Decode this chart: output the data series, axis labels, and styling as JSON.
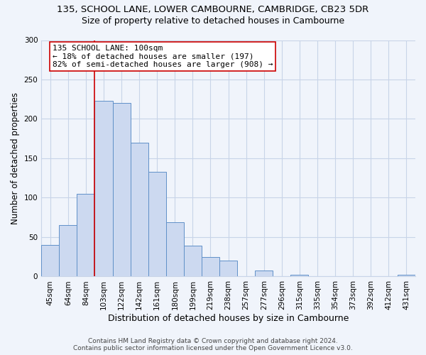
{
  "title": "135, SCHOOL LANE, LOWER CAMBOURNE, CAMBRIDGE, CB23 5DR",
  "subtitle": "Size of property relative to detached houses in Cambourne",
  "xlabel": "Distribution of detached houses by size in Cambourne",
  "ylabel": "Number of detached properties",
  "bin_labels": [
    "45sqm",
    "64sqm",
    "84sqm",
    "103sqm",
    "122sqm",
    "142sqm",
    "161sqm",
    "180sqm",
    "199sqm",
    "219sqm",
    "238sqm",
    "257sqm",
    "277sqm",
    "296sqm",
    "315sqm",
    "335sqm",
    "354sqm",
    "373sqm",
    "392sqm",
    "412sqm",
    "431sqm"
  ],
  "bar_heights": [
    40,
    65,
    105,
    223,
    220,
    170,
    133,
    69,
    39,
    25,
    20,
    0,
    8,
    0,
    2,
    0,
    0,
    0,
    0,
    0,
    2
  ],
  "bar_color": "#ccd9f0",
  "bar_edge_color": "#6090c8",
  "vline_x_index": 3,
  "vline_color": "#cc0000",
  "annotation_line1": "135 SCHOOL LANE: 100sqm",
  "annotation_line2": "← 18% of detached houses are smaller (197)",
  "annotation_line3": "82% of semi-detached houses are larger (908) →",
  "annotation_box_facecolor": "#ffffff",
  "annotation_box_edgecolor": "#cc0000",
  "ylim": [
    0,
    300
  ],
  "yticks": [
    0,
    50,
    100,
    150,
    200,
    250,
    300
  ],
  "footer_text": "Contains HM Land Registry data © Crown copyright and database right 2024.\nContains public sector information licensed under the Open Government Licence v3.0.",
  "background_color": "#f0f4fb",
  "grid_color": "#c8d4e8",
  "title_fontsize": 9.5,
  "subtitle_fontsize": 9,
  "ylabel_fontsize": 8.5,
  "xlabel_fontsize": 9,
  "tick_fontsize": 7.5,
  "annotation_fontsize": 8,
  "footer_fontsize": 6.5
}
